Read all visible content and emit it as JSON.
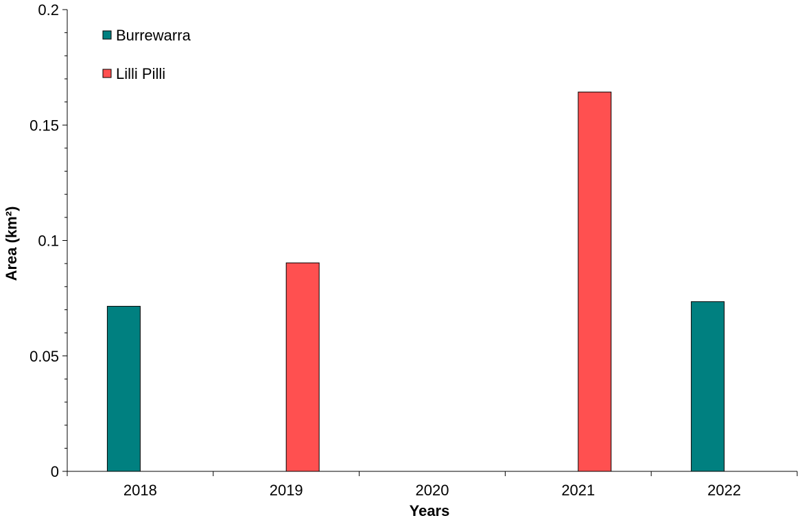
{
  "chart_data": {
    "type": "bar",
    "title": "",
    "xlabel": "Years",
    "ylabel": "Area (km²)",
    "categories": [
      "2018",
      "2019",
      "2020",
      "2021",
      "2022"
    ],
    "ylim": [
      0,
      0.2
    ],
    "yticks": [
      0,
      0.05,
      0.1,
      0.15,
      0.2
    ],
    "ytick_labels": [
      "0",
      "0.05",
      "0.1",
      "0.15",
      "0.2"
    ],
    "grid": false,
    "legend_position": "top-left",
    "series": [
      {
        "name": "Burrewarra",
        "color": "#008080",
        "values": [
          0.0715,
          0,
          0,
          0,
          0.0735
        ]
      },
      {
        "name": "Lilli Pilli",
        "color": "#ff5050",
        "values": [
          0,
          0.0903,
          0,
          0.1643,
          0
        ]
      }
    ]
  }
}
